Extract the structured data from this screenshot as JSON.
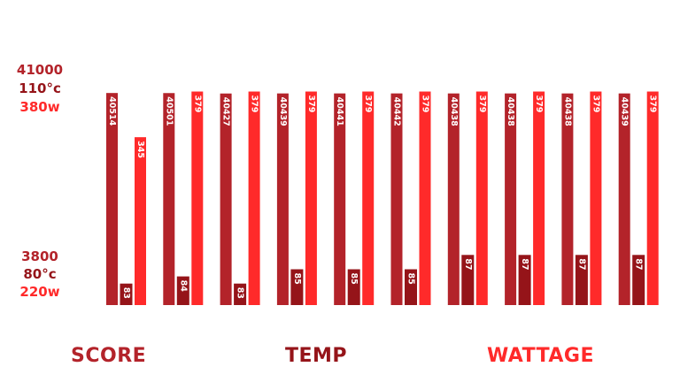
{
  "axis_top": {
    "score": "41000",
    "temp": "110°c",
    "wattage": "380w"
  },
  "axis_bottom": {
    "score": "3800",
    "temp": "80°c",
    "wattage": "220w"
  },
  "legend": {
    "score": "SCORE",
    "temp": "TEMP",
    "wattage": "WATTAGE"
  },
  "colors": {
    "score": "#b3232a",
    "temp": "#951419",
    "wattage": "#ff2a2a",
    "label_text": "#ffffff"
  },
  "chart_data": {
    "type": "bar",
    "categories": [
      "",
      "",
      "",
      "",
      "",
      "",
      "",
      "",
      "",
      ""
    ],
    "series": [
      {
        "name": "SCORE",
        "values": [
          40514,
          40501,
          40427,
          40439,
          40441,
          40442,
          40438,
          40438,
          40438,
          40439
        ]
      },
      {
        "name": "TEMP",
        "values": [
          83,
          84,
          83,
          85,
          85,
          85,
          87,
          87,
          87,
          87
        ]
      },
      {
        "name": "WATTAGE",
        "values": [
          345,
          379,
          379,
          379,
          379,
          379,
          379,
          379,
          379,
          379
        ]
      }
    ],
    "axes": {
      "score": {
        "range": [
          3800,
          41000
        ]
      },
      "temp": {
        "range": [
          80,
          110
        ]
      },
      "wattage": {
        "range": [
          220,
          380
        ]
      }
    },
    "grid": false,
    "legend_position": "bottom"
  }
}
